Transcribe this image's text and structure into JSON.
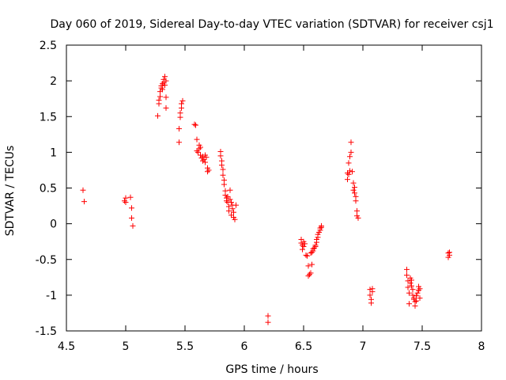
{
  "chart_data": {
    "type": "scatter",
    "title": "Day 060 of 2019, Sidereal Day-to-day VTEC variation (SDTVAR) for receiver csj1",
    "xlabel": "GPS time / hours",
    "ylabel": "SDTVAR / TECUs",
    "xlim": [
      4.5,
      8
    ],
    "ylim": [
      -1.5,
      2.5
    ],
    "xticks": [
      "4.5",
      "5",
      "5.5",
      "6",
      "6.5",
      "7",
      "7.5",
      "8"
    ],
    "yticks": [
      "-1.5",
      "-1",
      "-0.5",
      "0",
      "0.5",
      "1",
      "1.5",
      "2",
      "2.5"
    ],
    "marker": "+",
    "color": "#ff0000",
    "grid": false,
    "series": [
      {
        "name": "csj1",
        "points": [
          [
            4.64,
            0.47
          ],
          [
            4.65,
            0.31
          ],
          [
            4.99,
            0.32
          ],
          [
            5.0,
            0.36
          ],
          [
            5.0,
            0.3
          ],
          [
            5.04,
            0.37
          ],
          [
            5.05,
            0.22
          ],
          [
            5.05,
            0.08
          ],
          [
            5.06,
            -0.03
          ],
          [
            5.27,
            1.51
          ],
          [
            5.28,
            1.68
          ],
          [
            5.28,
            1.73
          ],
          [
            5.29,
            1.78
          ],
          [
            5.29,
            1.85
          ],
          [
            5.3,
            1.9
          ],
          [
            5.3,
            1.93
          ],
          [
            5.31,
            1.88
          ],
          [
            5.31,
            1.96
          ],
          [
            5.32,
            1.98
          ],
          [
            5.32,
            2.02
          ],
          [
            5.33,
            2.06
          ],
          [
            5.33,
            1.94
          ],
          [
            5.34,
            2.0
          ],
          [
            5.34,
            1.77
          ],
          [
            5.34,
            1.62
          ],
          [
            5.45,
            1.14
          ],
          [
            5.45,
            1.33
          ],
          [
            5.46,
            1.49
          ],
          [
            5.46,
            1.55
          ],
          [
            5.47,
            1.62
          ],
          [
            5.47,
            1.68
          ],
          [
            5.48,
            1.72
          ],
          [
            5.58,
            1.39
          ],
          [
            5.59,
            1.38
          ],
          [
            5.6,
            1.18
          ],
          [
            5.6,
            1.02
          ],
          [
            5.61,
            1.0
          ],
          [
            5.62,
            1.05
          ],
          [
            5.62,
            1.1
          ],
          [
            5.63,
            1.07
          ],
          [
            5.63,
            0.96
          ],
          [
            5.64,
            0.92
          ],
          [
            5.65,
            0.94
          ],
          [
            5.65,
            0.88
          ],
          [
            5.66,
            0.9
          ],
          [
            5.67,
            0.96
          ],
          [
            5.67,
            0.86
          ],
          [
            5.68,
            0.93
          ],
          [
            5.69,
            0.78
          ],
          [
            5.69,
            0.73
          ],
          [
            5.7,
            0.75
          ],
          [
            5.8,
            1.01
          ],
          [
            5.8,
            0.95
          ],
          [
            5.81,
            0.88
          ],
          [
            5.81,
            0.82
          ],
          [
            5.82,
            0.76
          ],
          [
            5.82,
            0.68
          ],
          [
            5.83,
            0.61
          ],
          [
            5.83,
            0.55
          ],
          [
            5.84,
            0.46
          ],
          [
            5.84,
            0.4
          ],
          [
            5.85,
            0.36
          ],
          [
            5.85,
            0.32
          ],
          [
            5.86,
            0.38
          ],
          [
            5.86,
            0.3
          ],
          [
            5.87,
            0.24
          ],
          [
            5.87,
            0.18
          ],
          [
            5.88,
            0.47
          ],
          [
            5.88,
            0.34
          ],
          [
            5.89,
            0.3
          ],
          [
            5.89,
            0.12
          ],
          [
            5.9,
            0.26
          ],
          [
            5.9,
            0.21
          ],
          [
            5.91,
            0.16
          ],
          [
            5.91,
            0.09
          ],
          [
            5.92,
            0.06
          ],
          [
            5.93,
            0.26
          ],
          [
            6.2,
            -1.29
          ],
          [
            6.2,
            -1.38
          ],
          [
            6.48,
            -0.22
          ],
          [
            6.48,
            -0.27
          ],
          [
            6.49,
            -0.3
          ],
          [
            6.49,
            -0.36
          ],
          [
            6.5,
            -0.25
          ],
          [
            6.5,
            -0.32
          ],
          [
            6.51,
            -0.28
          ],
          [
            6.52,
            -0.44
          ],
          [
            6.53,
            -0.45
          ],
          [
            6.54,
            -0.59
          ],
          [
            6.54,
            -0.73
          ],
          [
            6.55,
            -0.71
          ],
          [
            6.56,
            -0.69
          ],
          [
            6.56,
            -0.41
          ],
          [
            6.57,
            -0.57
          ],
          [
            6.57,
            -0.4
          ],
          [
            6.58,
            -0.38
          ],
          [
            6.58,
            -0.35
          ],
          [
            6.59,
            -0.34
          ],
          [
            6.6,
            -0.32
          ],
          [
            6.6,
            -0.3
          ],
          [
            6.61,
            -0.26
          ],
          [
            6.61,
            -0.22
          ],
          [
            6.62,
            -0.19
          ],
          [
            6.62,
            -0.15
          ],
          [
            6.63,
            -0.12
          ],
          [
            6.64,
            -0.09
          ],
          [
            6.64,
            -0.06
          ],
          [
            6.65,
            -0.03
          ],
          [
            6.65,
            -0.05
          ],
          [
            6.87,
            0.71
          ],
          [
            6.87,
            0.62
          ],
          [
            6.88,
            0.69
          ],
          [
            6.88,
            0.85
          ],
          [
            6.89,
            0.74
          ],
          [
            6.89,
            0.94
          ],
          [
            6.9,
            1.14
          ],
          [
            6.9,
            1.0
          ],
          [
            6.91,
            0.73
          ],
          [
            6.92,
            0.57
          ],
          [
            6.92,
            0.47
          ],
          [
            6.93,
            0.51
          ],
          [
            6.93,
            0.43
          ],
          [
            6.94,
            0.38
          ],
          [
            6.94,
            0.32
          ],
          [
            6.95,
            0.18
          ],
          [
            6.95,
            0.11
          ],
          [
            6.96,
            0.08
          ],
          [
            7.06,
            -0.92
          ],
          [
            7.06,
            -1.0
          ],
          [
            7.07,
            -1.06
          ],
          [
            7.07,
            -1.11
          ],
          [
            7.08,
            -0.95
          ],
          [
            7.08,
            -0.91
          ],
          [
            7.37,
            -0.64
          ],
          [
            7.37,
            -0.72
          ],
          [
            7.38,
            -0.8
          ],
          [
            7.38,
            -0.89
          ],
          [
            7.39,
            -0.97
          ],
          [
            7.39,
            -1.12
          ],
          [
            7.4,
            -0.76
          ],
          [
            7.4,
            -0.83
          ],
          [
            7.41,
            -0.79
          ],
          [
            7.41,
            -0.87
          ],
          [
            7.42,
            -0.92
          ],
          [
            7.42,
            -1.0
          ],
          [
            7.43,
            -1.06
          ],
          [
            7.43,
            -1.04
          ],
          [
            7.44,
            -1.09
          ],
          [
            7.44,
            -1.15
          ],
          [
            7.45,
            -1.01
          ],
          [
            7.45,
            -1.08
          ],
          [
            7.46,
            -0.97
          ],
          [
            7.47,
            -0.93
          ],
          [
            7.47,
            -0.88
          ],
          [
            7.48,
            -0.91
          ],
          [
            7.48,
            -1.04
          ],
          [
            7.72,
            -0.41
          ],
          [
            7.72,
            -0.47
          ],
          [
            7.73,
            -0.44
          ],
          [
            7.73,
            -0.4
          ]
        ]
      }
    ]
  }
}
